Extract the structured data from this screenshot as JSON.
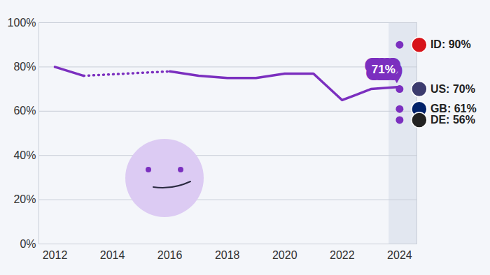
{
  "chart_data": {
    "type": "line",
    "x": [
      2012,
      2013,
      2014,
      2015,
      2016,
      2017,
      2018,
      2019,
      2020,
      2021,
      2022,
      2023,
      2024
    ],
    "values": [
      80,
      76,
      null,
      null,
      78,
      76,
      75,
      75,
      77,
      77,
      65,
      70,
      71
    ],
    "color": "#7b2fbf",
    "line_style": "solid",
    "annotations": [
      {
        "x": 2024,
        "y": 71,
        "text": "71%"
      }
    ],
    "countries": {
      "type": "scatter",
      "x": 2024,
      "categories": [
        "ID",
        "US",
        "GB",
        "DE"
      ],
      "values": [
        90,
        70,
        61,
        56
      ],
      "value_labels": [
        "ID: 90%",
        "US: 70%",
        "GB: 61%",
        "DE: 56%"
      ]
    },
    "xlim": [
      2011.44,
      2024.6
    ],
    "xticks": [
      2012,
      2014,
      2016,
      2018,
      2020,
      2022,
      2024
    ],
    "ylim": [
      0,
      100
    ],
    "yticks": [
      {
        "value": 0,
        "label": "0%"
      },
      {
        "value": 20,
        "label": "20%"
      },
      {
        "value": 40,
        "label": "40%"
      },
      {
        "value": 60,
        "label": "60%"
      },
      {
        "value": 80,
        "label": "80%"
      },
      {
        "value": 100,
        "label": "100%"
      }
    ],
    "grid": true
  }
}
